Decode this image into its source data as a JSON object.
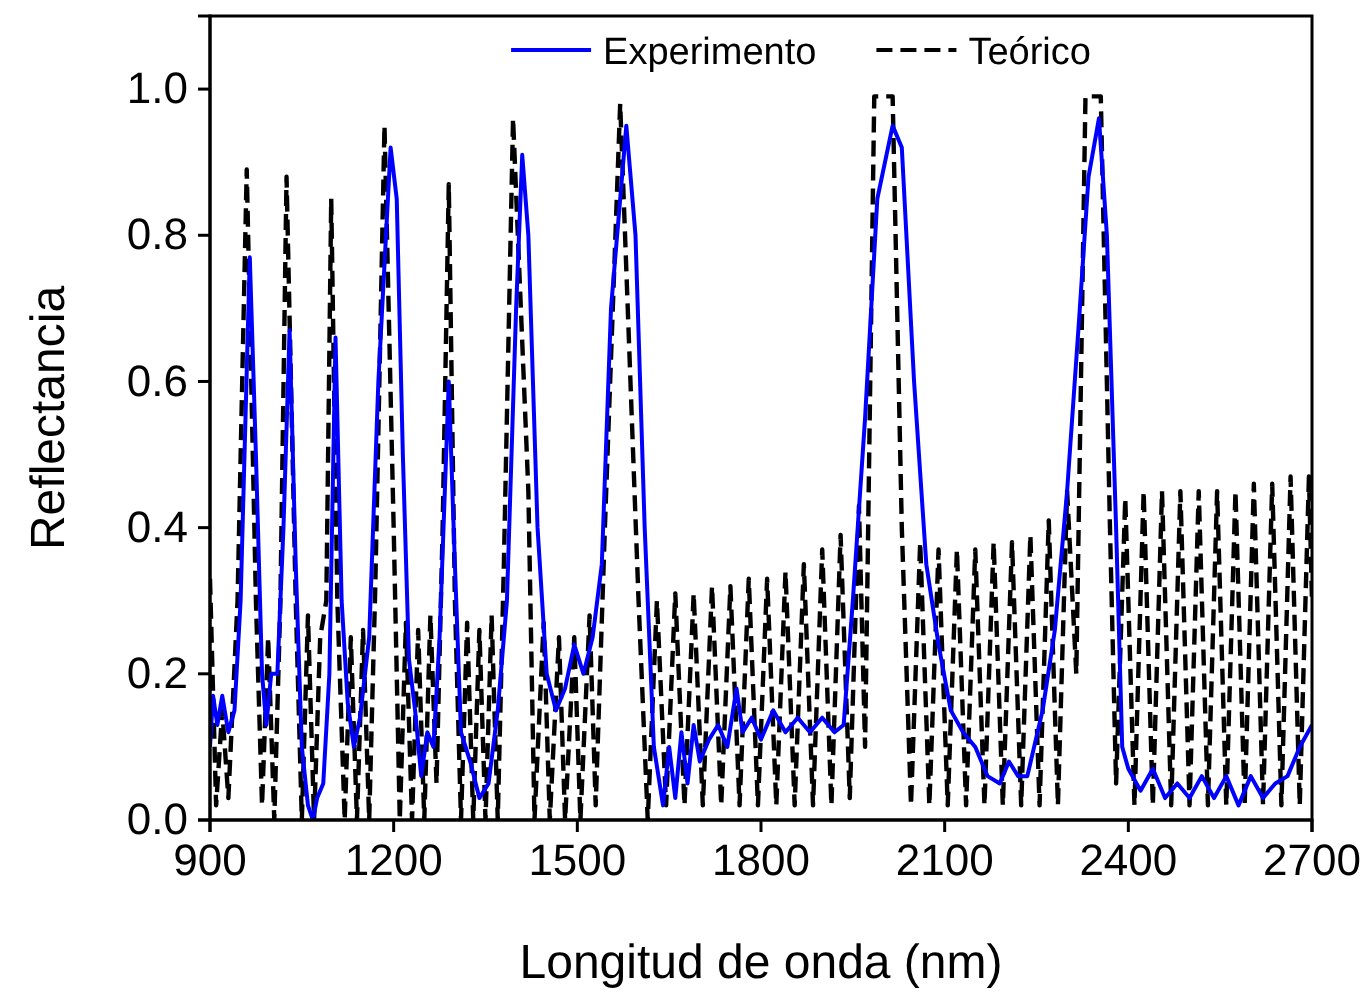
{
  "chart_data": {
    "type": "line",
    "xlabel": "Longitud de onda (nm)",
    "ylabel": "Reflectancia",
    "xlim": [
      900,
      2700
    ],
    "xticks": [
      900,
      1200,
      1500,
      1800,
      2100,
      2400,
      2700
    ],
    "ylim": [
      0,
      1.1
    ],
    "yticks": [
      {
        "value": 0,
        "label": "0.0"
      },
      0.2,
      0.4,
      0.6,
      0.8,
      {
        "value": 1,
        "label": "1.0"
      }
    ],
    "legend": "top",
    "grid": false,
    "series": [
      {
        "name": "Experimento",
        "color": "#0000ff",
        "line_style": "solid",
        "x": [
          900,
          905,
          912,
          920,
          930,
          940,
          950,
          965,
          975,
          985,
          992,
          1000,
          1010,
          1020,
          1030,
          1040,
          1050,
          1060,
          1068,
          1075,
          1085,
          1095,
          1105,
          1115,
          1125,
          1135,
          1145,
          1160,
          1175,
          1195,
          1205,
          1215,
          1225,
          1235,
          1245,
          1255,
          1265,
          1275,
          1290,
          1300,
          1310,
          1325,
          1340,
          1355,
          1370,
          1385,
          1400,
          1410,
          1420,
          1435,
          1450,
          1465,
          1480,
          1495,
          1510,
          1525,
          1540,
          1555,
          1580,
          1595,
          1610,
          1625,
          1640,
          1650,
          1660,
          1670,
          1680,
          1690,
          1700,
          1715,
          1730,
          1745,
          1760,
          1770,
          1785,
          1800,
          1820,
          1840,
          1860,
          1880,
          1900,
          1920,
          1935,
          1950,
          1970,
          1990,
          2015,
          2030,
          2050,
          2070,
          2090,
          2110,
          2130,
          2150,
          2170,
          2190,
          2205,
          2220,
          2235,
          2260,
          2280,
          2300,
          2320,
          2335,
          2352,
          2365,
          2380,
          2390,
          2400,
          2420,
          2440,
          2460,
          2480,
          2500,
          2520,
          2540,
          2560,
          2580,
          2600,
          2620,
          2640,
          2660,
          2680,
          2700
        ],
        "values": [
          0.1,
          0.17,
          0.13,
          0.17,
          0.12,
          0.15,
          0.3,
          0.77,
          0.5,
          0.2,
          0.13,
          0.2,
          0.2,
          0.4,
          0.67,
          0.35,
          0.1,
          0.02,
          0.0,
          0.03,
          0.05,
          0.2,
          0.66,
          0.3,
          0.16,
          0.1,
          0.14,
          0.25,
          0.6,
          0.92,
          0.85,
          0.5,
          0.22,
          0.15,
          0.06,
          0.12,
          0.1,
          0.25,
          0.6,
          0.35,
          0.12,
          0.08,
          0.03,
          0.05,
          0.15,
          0.3,
          0.7,
          0.91,
          0.8,
          0.4,
          0.2,
          0.15,
          0.18,
          0.24,
          0.2,
          0.25,
          0.35,
          0.7,
          0.95,
          0.8,
          0.4,
          0.1,
          0.02,
          0.1,
          0.03,
          0.12,
          0.05,
          0.13,
          0.08,
          0.11,
          0.13,
          0.1,
          0.18,
          0.12,
          0.14,
          0.11,
          0.15,
          0.12,
          0.14,
          0.12,
          0.14,
          0.12,
          0.13,
          0.3,
          0.55,
          0.85,
          0.95,
          0.92,
          0.6,
          0.35,
          0.24,
          0.15,
          0.12,
          0.1,
          0.06,
          0.05,
          0.08,
          0.06,
          0.06,
          0.15,
          0.26,
          0.45,
          0.69,
          0.88,
          0.96,
          0.8,
          0.4,
          0.1,
          0.07,
          0.04,
          0.07,
          0.03,
          0.05,
          0.03,
          0.06,
          0.03,
          0.06,
          0.02,
          0.06,
          0.03,
          0.05,
          0.06,
          0.1,
          0.13
        ]
      },
      {
        "name": "Teórico",
        "color": "#000000",
        "line_style": "dashed",
        "x": [
          900,
          910,
          920,
          930,
          945,
          960,
          975,
          985,
          995,
          1005,
          1015,
          1025,
          1040,
          1050,
          1060,
          1070,
          1080,
          1090,
          1098,
          1108,
          1120,
          1130,
          1140,
          1150,
          1160,
          1170,
          1185,
          1200,
          1210,
          1220,
          1230,
          1240,
          1250,
          1260,
          1270,
          1280,
          1290,
          1300,
          1310,
          1320,
          1330,
          1340,
          1350,
          1360,
          1370,
          1380,
          1395,
          1420,
          1430,
          1445,
          1455,
          1470,
          1480,
          1495,
          1505,
          1520,
          1530,
          1545,
          1570,
          1600,
          1615,
          1630,
          1645,
          1660,
          1675,
          1690,
          1705,
          1720,
          1735,
          1750,
          1765,
          1780,
          1795,
          1810,
          1825,
          1840,
          1855,
          1870,
          1885,
          1900,
          1915,
          1930,
          1945,
          1960,
          1970,
          1985,
          2015,
          2030,
          2045,
          2060,
          2075,
          2090,
          2105,
          2120,
          2135,
          2150,
          2165,
          2180,
          2195,
          2210,
          2225,
          2240,
          2255,
          2270,
          2285,
          2300,
          2315,
          2330,
          2355,
          2370,
          2380,
          2395,
          2410,
          2425,
          2440,
          2455,
          2470,
          2485,
          2500,
          2515,
          2530,
          2545,
          2560,
          2575,
          2590,
          2605,
          2620,
          2635,
          2650,
          2665,
          2680,
          2695,
          2700
        ],
        "values": [
          0.33,
          0.02,
          0.15,
          0.03,
          0.3,
          0.89,
          0.3,
          0.02,
          0.25,
          0.0,
          0.3,
          0.88,
          0.3,
          0.0,
          0.28,
          0.0,
          0.25,
          0.3,
          0.85,
          0.3,
          0.0,
          0.25,
          0.0,
          0.26,
          0.0,
          0.32,
          0.95,
          0.4,
          0.0,
          0.27,
          0.0,
          0.26,
          0.0,
          0.28,
          0.05,
          0.4,
          0.87,
          0.3,
          0.0,
          0.27,
          0.0,
          0.26,
          0.0,
          0.28,
          0.0,
          0.35,
          0.96,
          0.45,
          0.0,
          0.27,
          0.0,
          0.25,
          0.0,
          0.25,
          0.0,
          0.28,
          0.02,
          0.4,
          0.98,
          0.3,
          0.0,
          0.3,
          0.02,
          0.31,
          0.02,
          0.31,
          0.02,
          0.32,
          0.02,
          0.32,
          0.02,
          0.33,
          0.02,
          0.33,
          0.02,
          0.34,
          0.02,
          0.35,
          0.02,
          0.37,
          0.02,
          0.39,
          0.03,
          0.43,
          0.1,
          0.99,
          0.99,
          0.4,
          0.02,
          0.38,
          0.02,
          0.37,
          0.02,
          0.37,
          0.02,
          0.37,
          0.02,
          0.38,
          0.02,
          0.38,
          0.02,
          0.39,
          0.02,
          0.41,
          0.02,
          0.45,
          0.2,
          0.99,
          0.99,
          0.4,
          0.05,
          0.44,
          0.02,
          0.45,
          0.02,
          0.45,
          0.02,
          0.45,
          0.02,
          0.45,
          0.02,
          0.45,
          0.02,
          0.45,
          0.02,
          0.46,
          0.02,
          0.46,
          0.02,
          0.47,
          0.02,
          0.47,
          0.3
        ]
      }
    ]
  }
}
